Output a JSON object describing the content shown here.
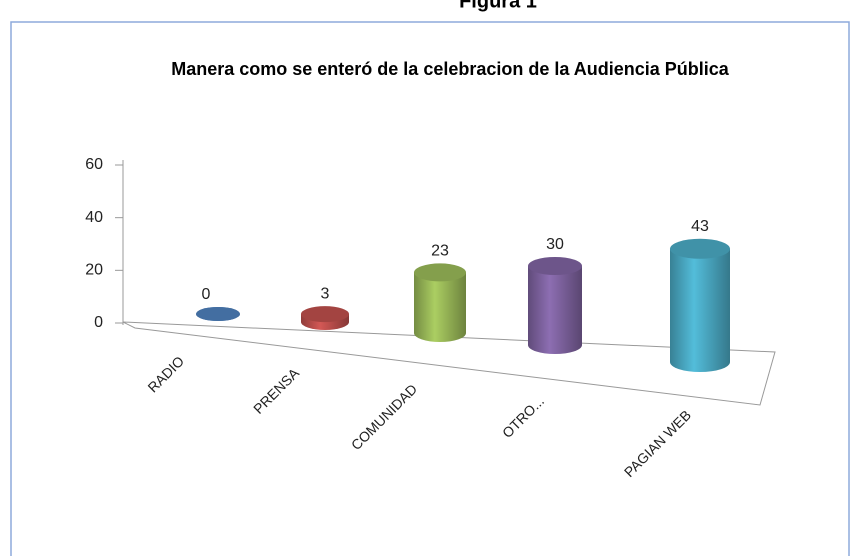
{
  "figure": "Figura 1",
  "chart_data": {
    "type": "cylinder",
    "title": "Manera como se enteró  de la celebracion de la Audiencia Pública",
    "categories": [
      "RADIO",
      "PRENSA",
      "COMUNIDAD",
      "OTRO...",
      "PAGIAN WEB"
    ],
    "values": [
      0,
      3,
      23,
      30,
      43
    ],
    "colors": [
      "#4f81bd",
      "#c0504d",
      "#9bbb59",
      "#8064a2",
      "#4bacc6"
    ],
    "ylim": [
      0,
      60
    ],
    "yticks": [
      0,
      20,
      40,
      60
    ]
  }
}
